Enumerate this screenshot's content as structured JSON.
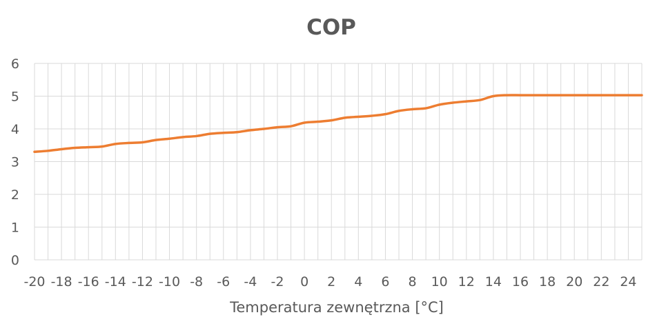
{
  "chart_data": {
    "type": "line",
    "title": "COP",
    "xlabel": "Temperatura zewnętrzna [°C]",
    "ylabel": "",
    "x": [
      -20,
      -19,
      -18,
      -17,
      -16,
      -15,
      -14,
      -13,
      -12,
      -11,
      -10,
      -9,
      -8,
      -7,
      -6,
      -5,
      -4,
      -3,
      -2,
      -1,
      0,
      1,
      2,
      3,
      4,
      5,
      6,
      7,
      8,
      9,
      10,
      11,
      12,
      13,
      14,
      15,
      16,
      17,
      18,
      19,
      20,
      21,
      22,
      23,
      24,
      25
    ],
    "x_tick_labels": [
      "-20",
      "-18",
      "-16",
      "-14",
      "-12",
      "-10",
      "-8",
      "-6",
      "-4",
      "-2",
      "0",
      "2",
      "4",
      "6",
      "8",
      "10",
      "12",
      "14",
      "16",
      "18",
      "20",
      "22",
      "24"
    ],
    "y_tick_labels": [
      "0",
      "1",
      "2",
      "3",
      "4",
      "5",
      "6"
    ],
    "xlim": [
      -20,
      25
    ],
    "ylim": [
      0,
      6
    ],
    "grid": true,
    "legend": "none",
    "series": [
      {
        "color": "#ed7d31",
        "values": [
          3.3,
          3.33,
          3.38,
          3.42,
          3.44,
          3.46,
          3.54,
          3.57,
          3.59,
          3.66,
          3.7,
          3.75,
          3.78,
          3.85,
          3.88,
          3.9,
          3.96,
          4.0,
          4.05,
          4.08,
          4.19,
          4.22,
          4.26,
          4.34,
          4.37,
          4.4,
          4.45,
          4.55,
          4.6,
          4.63,
          4.74,
          4.8,
          4.84,
          4.88,
          5.0,
          5.03,
          5.03,
          5.03,
          5.03,
          5.03,
          5.03,
          5.03,
          5.03,
          5.03,
          5.03,
          5.03
        ]
      }
    ]
  }
}
